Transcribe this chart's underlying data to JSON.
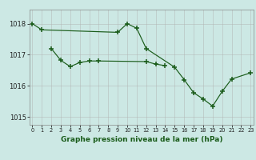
{
  "segs1": [
    {
      "x": [
        0,
        1
      ],
      "y": [
        1018.0,
        1017.8
      ]
    },
    {
      "x": [
        1,
        9
      ],
      "y": [
        1017.8,
        1017.72
      ]
    },
    {
      "x": [
        9,
        10,
        11,
        12
      ],
      "y": [
        1017.72,
        1018.0,
        1017.85,
        1017.2
      ]
    },
    {
      "x": [
        12,
        15,
        16,
        17,
        18,
        19,
        20,
        21
      ],
      "y": [
        1017.2,
        1016.6,
        1016.2,
        1015.78,
        1015.58,
        1015.35,
        1015.82,
        1016.22
      ]
    },
    {
      "x": [
        21,
        23
      ],
      "y": [
        1016.22,
        1016.42
      ]
    }
  ],
  "pts1": {
    "x": [
      0,
      1,
      9,
      10,
      11,
      12,
      15,
      16,
      17,
      18,
      19,
      20,
      21,
      23
    ],
    "y": [
      1018.0,
      1017.8,
      1017.72,
      1018.0,
      1017.85,
      1017.2,
      1016.6,
      1016.2,
      1015.78,
      1015.58,
      1015.35,
      1015.82,
      1016.22,
      1016.42
    ]
  },
  "segs2": [
    {
      "x": [
        2,
        3,
        4,
        5,
        6,
        7
      ],
      "y": [
        1017.2,
        1016.82,
        1016.62,
        1016.75,
        1016.8,
        1016.8
      ]
    },
    {
      "x": [
        7,
        12,
        13,
        14
      ],
      "y": [
        1016.8,
        1016.78,
        1016.7,
        1016.65
      ]
    }
  ],
  "pts2": {
    "x": [
      2,
      3,
      4,
      5,
      6,
      7,
      12,
      13,
      14
    ],
    "y": [
      1017.2,
      1016.82,
      1016.62,
      1016.75,
      1016.8,
      1016.8,
      1016.78,
      1016.7,
      1016.65
    ]
  },
  "ylim": [
    1014.75,
    1018.45
  ],
  "xlim": [
    -0.3,
    23.3
  ],
  "yticks": [
    1015,
    1016,
    1017,
    1018
  ],
  "xticks": [
    0,
    1,
    2,
    3,
    4,
    5,
    6,
    7,
    8,
    9,
    10,
    11,
    12,
    13,
    14,
    15,
    16,
    17,
    18,
    19,
    20,
    21,
    22,
    23
  ],
  "line_color": "#1a5c1a",
  "bg_color": "#cce8e4",
  "grid_color": "#b0b0b0",
  "xlabel": "Graphe pression niveau de la mer (hPa)",
  "xlabel_color": "#1a5c1a",
  "xlabel_fontsize": 6.5,
  "ytick_fontsize": 6.0,
  "xtick_fontsize": 4.8
}
